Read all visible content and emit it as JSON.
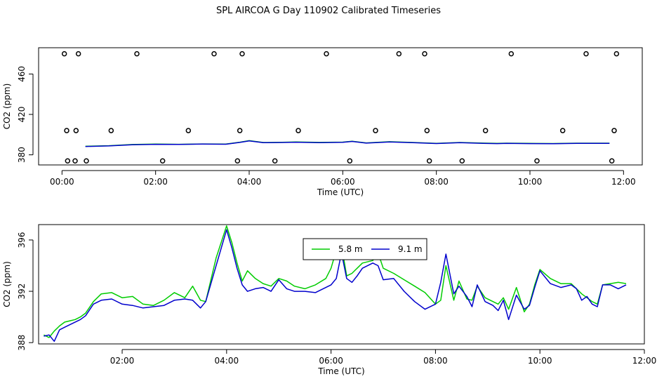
{
  "title": "SPL AIRCOA G  Day 110902  Calibrated Timeseries",
  "chart_data": [
    {
      "type": "scatter",
      "title": "",
      "xlabel": "Time (UTC)",
      "ylabel": "CO2 (ppm)",
      "xlim": [
        -0.5,
        12.4
      ],
      "ylim": [
        370,
        486
      ],
      "xticks": [
        {
          "v": 0,
          "label": "00:00"
        },
        {
          "v": 2,
          "label": "02:00"
        },
        {
          "v": 4,
          "label": "04:00"
        },
        {
          "v": 6,
          "label": "06:00"
        },
        {
          "v": 8,
          "label": "08:00"
        },
        {
          "v": 10,
          "label": "10:00"
        },
        {
          "v": 12,
          "label": "12:00"
        }
      ],
      "yticks": [
        {
          "v": 380,
          "label": "380"
        },
        {
          "v": 420,
          "label": "420"
        },
        {
          "v": 460,
          "label": "460"
        }
      ],
      "calibration_points": [
        [
          0.05,
          480
        ],
        [
          0.35,
          480
        ],
        [
          1.6,
          480
        ],
        [
          3.25,
          480
        ],
        [
          3.85,
          480
        ],
        [
          5.65,
          480
        ],
        [
          7.2,
          480
        ],
        [
          7.75,
          480
        ],
        [
          9.6,
          480
        ],
        [
          11.2,
          480
        ],
        [
          11.85,
          480
        ],
        [
          0.1,
          404
        ],
        [
          0.3,
          404
        ],
        [
          1.05,
          404
        ],
        [
          2.7,
          404
        ],
        [
          3.8,
          404
        ],
        [
          5.05,
          404
        ],
        [
          6.7,
          404
        ],
        [
          7.8,
          404
        ],
        [
          9.05,
          404
        ],
        [
          10.7,
          404
        ],
        [
          11.8,
          404
        ],
        [
          0.12,
          374
        ],
        [
          0.28,
          374
        ],
        [
          0.52,
          374
        ],
        [
          2.15,
          374
        ],
        [
          3.75,
          374
        ],
        [
          4.55,
          374
        ],
        [
          6.15,
          374
        ],
        [
          7.85,
          374
        ],
        [
          8.55,
          374
        ],
        [
          10.15,
          374
        ],
        [
          11.75,
          374
        ]
      ],
      "series": [
        {
          "name": "5.8 m",
          "color": "#00cc00",
          "x": [
            0.5,
            1.0,
            1.5,
            2.0,
            2.5,
            3.0,
            3.5,
            3.8,
            4.0,
            4.3,
            4.7,
            5.0,
            5.5,
            6.0,
            6.2,
            6.5,
            7.0,
            7.5,
            8.0,
            8.2,
            8.5,
            9.0,
            9.3,
            9.5,
            10.0,
            10.5,
            11.0,
            11.7
          ],
          "y": [
            388.5,
            389.0,
            390.2,
            390.6,
            390.4,
            390.8,
            390.6,
            392.5,
            394.0,
            392.2,
            392.4,
            392.7,
            392.3,
            392.6,
            393.5,
            391.8,
            393.0,
            392.2,
            391.4,
            391.7,
            392.2,
            391.6,
            391.3,
            391.5,
            391.3,
            391.2,
            391.5,
            391.5
          ]
        },
        {
          "name": "9.1 m",
          "color": "#0000cc",
          "x": [
            0.5,
            1.0,
            1.5,
            2.0,
            2.5,
            3.0,
            3.5,
            3.8,
            4.0,
            4.3,
            4.7,
            5.0,
            5.5,
            6.0,
            6.2,
            6.5,
            7.0,
            7.5,
            8.0,
            8.2,
            8.5,
            9.0,
            9.3,
            9.5,
            10.0,
            10.5,
            11.0,
            11.7
          ],
          "y": [
            388.3,
            388.8,
            390.0,
            390.4,
            390.3,
            390.6,
            390.5,
            392.3,
            393.8,
            392.0,
            392.2,
            392.5,
            392.1,
            392.4,
            393.3,
            391.6,
            392.8,
            392.0,
            391.2,
            391.5,
            392.0,
            391.4,
            391.1,
            391.3,
            391.1,
            391.0,
            391.3,
            391.3
          ]
        }
      ]
    },
    {
      "type": "line",
      "title": "",
      "xlabel": "Time (UTC)",
      "ylabel": "CO2 (ppm)",
      "xlim": [
        0.4,
        12.0
      ],
      "ylim": [
        387.9,
        397.2
      ],
      "xticks": [
        {
          "v": 2,
          "label": "02:00"
        },
        {
          "v": 4,
          "label": "04:00"
        },
        {
          "v": 6,
          "label": "06:00"
        },
        {
          "v": 8,
          "label": "08:00"
        },
        {
          "v": 10,
          "label": "10:00"
        },
        {
          "v": 12,
          "label": "12:00"
        }
      ],
      "yticks": [
        {
          "v": 388,
          "label": "388"
        },
        {
          "v": 392,
          "label": "392"
        },
        {
          "v": 396,
          "label": "396"
        }
      ],
      "legend_position": "top-center",
      "series": [
        {
          "name": "5.8 m",
          "color": "#00cc00",
          "x": [
            0.5,
            0.6,
            0.7,
            0.8,
            0.9,
            1.0,
            1.1,
            1.2,
            1.3,
            1.45,
            1.6,
            1.8,
            2.0,
            2.2,
            2.4,
            2.6,
            2.8,
            3.0,
            3.2,
            3.35,
            3.5,
            3.6,
            3.8,
            4.0,
            4.1,
            4.2,
            4.3,
            4.4,
            4.55,
            4.7,
            4.85,
            5.0,
            5.15,
            5.3,
            5.5,
            5.7,
            5.9,
            6.0,
            6.1,
            6.2,
            6.3,
            6.4,
            6.5,
            6.6,
            6.8,
            6.9,
            7.0,
            7.2,
            7.4,
            7.6,
            7.8,
            8.0,
            8.1,
            8.2,
            8.35,
            8.45,
            8.6,
            8.7,
            8.8,
            8.95,
            9.1,
            9.2,
            9.3,
            9.4,
            9.55,
            9.7,
            9.8,
            9.9,
            10.0,
            10.2,
            10.4,
            10.6,
            10.7,
            10.8,
            10.9,
            11.0,
            11.1,
            11.2,
            11.35,
            11.5,
            11.65
          ],
          "y": [
            388.6,
            388.4,
            388.9,
            389.3,
            389.6,
            389.7,
            389.8,
            390.0,
            390.3,
            391.2,
            391.8,
            391.9,
            391.5,
            391.6,
            391.0,
            390.9,
            391.3,
            391.9,
            391.5,
            392.4,
            391.3,
            391.2,
            394.6,
            397.1,
            395.8,
            394.2,
            392.8,
            393.6,
            393.0,
            392.6,
            392.4,
            393.0,
            392.8,
            392.4,
            392.2,
            392.5,
            393.0,
            393.8,
            395.2,
            395.6,
            393.2,
            393.4,
            393.8,
            394.2,
            394.4,
            395.0,
            393.8,
            393.4,
            392.9,
            392.4,
            391.9,
            391.0,
            391.3,
            394.0,
            391.3,
            392.8,
            391.4,
            391.3,
            392.4,
            391.5,
            391.2,
            391.0,
            391.5,
            390.6,
            392.3,
            390.4,
            391.0,
            392.5,
            393.7,
            393.0,
            392.6,
            392.6,
            392.2,
            391.8,
            391.5,
            391.2,
            391.0,
            392.5,
            392.6,
            392.7,
            392.6
          ]
        },
        {
          "name": "9.1 m",
          "color": "#0000cc",
          "x": [
            0.5,
            0.6,
            0.7,
            0.8,
            0.9,
            1.0,
            1.1,
            1.2,
            1.3,
            1.45,
            1.6,
            1.8,
            2.0,
            2.2,
            2.4,
            2.6,
            2.8,
            3.0,
            3.2,
            3.35,
            3.5,
            3.6,
            3.8,
            4.0,
            4.1,
            4.2,
            4.3,
            4.4,
            4.55,
            4.7,
            4.85,
            5.0,
            5.15,
            5.3,
            5.5,
            5.7,
            5.9,
            6.0,
            6.1,
            6.2,
            6.3,
            6.4,
            6.5,
            6.6,
            6.8,
            6.9,
            7.0,
            7.2,
            7.4,
            7.6,
            7.8,
            8.0,
            8.1,
            8.2,
            8.35,
            8.45,
            8.6,
            8.7,
            8.8,
            8.95,
            9.1,
            9.2,
            9.3,
            9.4,
            9.55,
            9.7,
            9.8,
            9.9,
            10.0,
            10.2,
            10.4,
            10.6,
            10.7,
            10.8,
            10.9,
            11.0,
            11.1,
            11.2,
            11.35,
            11.5,
            11.65
          ],
          "y": [
            388.5,
            388.6,
            388.1,
            389.0,
            389.2,
            389.4,
            389.6,
            389.8,
            390.1,
            391.0,
            391.3,
            391.4,
            391.0,
            390.9,
            390.7,
            390.8,
            390.9,
            391.3,
            391.4,
            391.3,
            390.7,
            391.2,
            394.0,
            396.8,
            395.4,
            393.8,
            392.5,
            392.0,
            392.2,
            392.3,
            392.0,
            392.9,
            392.2,
            392.0,
            392.0,
            391.9,
            392.3,
            392.5,
            393.0,
            395.0,
            393.0,
            392.7,
            393.2,
            393.8,
            394.2,
            394.0,
            392.9,
            393.0,
            392.0,
            391.2,
            390.6,
            391.0,
            392.7,
            394.9,
            391.8,
            392.4,
            391.6,
            390.8,
            392.5,
            391.2,
            390.9,
            390.5,
            391.3,
            389.8,
            391.7,
            390.6,
            390.9,
            392.3,
            393.6,
            392.6,
            392.3,
            392.5,
            392.2,
            391.3,
            391.6,
            391.0,
            390.8,
            392.5,
            392.5,
            392.2,
            392.5
          ]
        }
      ]
    }
  ]
}
